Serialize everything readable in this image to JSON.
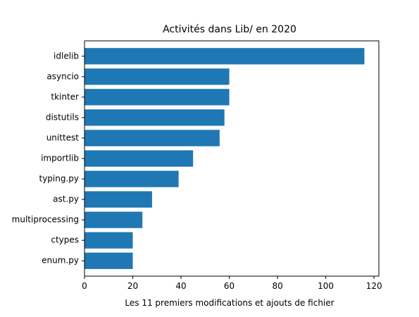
{
  "chart_data": {
    "type": "bar",
    "orientation": "horizontal",
    "title": "Activités dans Lib/ en 2020",
    "xlabel": "Les 11 premiers modifications et ajouts de fichier",
    "ylabel": "",
    "categories": [
      "idlelib",
      "asyncio",
      "tkinter",
      "distutils",
      "unittest",
      "importlib",
      "typing.py",
      "ast.py",
      "multiprocessing",
      "ctypes",
      "enum.py"
    ],
    "values": [
      116,
      60,
      60,
      58,
      56,
      45,
      39,
      28,
      24,
      20,
      20
    ],
    "xlim": [
      0,
      122
    ],
    "xticks": [
      0,
      20,
      40,
      60,
      80,
      100,
      120
    ],
    "grid": false,
    "legend": "none",
    "bar_color": "#1f77b4"
  }
}
